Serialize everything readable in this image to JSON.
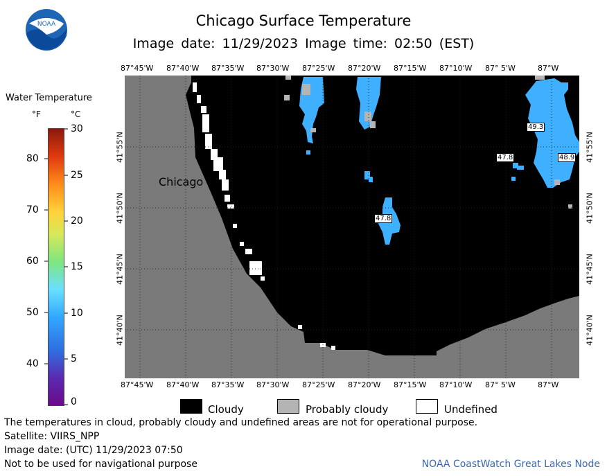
{
  "header": {
    "title": "Chicago Surface Temperature",
    "subtitle": "Image date: 11/29/2023    Image time: 02:50 (EST)"
  },
  "logo": {
    "text": "NOAA"
  },
  "map": {
    "lon_labels": [
      "87°45'W",
      "87°40'W",
      "87°35'W",
      "87°30'W",
      "87°25'W",
      "87°20'W",
      "87°15'W",
      "87°10'W",
      "87° 5'W",
      "87°W"
    ],
    "lat_labels": [
      "41°55'N",
      "41°50'N",
      "41°45'N",
      "41°40'N"
    ],
    "city_label": "Chicago",
    "temp_labels": [
      "49.3",
      "47.8",
      "48.9",
      "47.8"
    ]
  },
  "colorbar": {
    "title": "Water Temperature",
    "unit_f": "°F",
    "unit_c": "°C",
    "f_ticks": [
      "80",
      "70",
      "60",
      "50",
      "40"
    ],
    "c_ticks": [
      "30",
      "25",
      "20",
      "15",
      "10",
      "5",
      "0"
    ]
  },
  "legend": {
    "cloudy": "Cloudy",
    "probably_cloudy": "Probably cloudy",
    "undefined": "Undefined"
  },
  "notes": {
    "disclaimer": "The temperatures in cloud, probably cloudy and undefined areas are not for operational purpose.",
    "satellite": "Satellite: VIIRS_NPP",
    "utc_date": "Image date: (UTC) 11/29/2023  07:50",
    "navigation": "Not to be used for navigational purpose"
  },
  "credit": "NOAA CoastWatch Great Lakes Node",
  "colors": {
    "land": "#7a7a7a",
    "cloud": "#000000",
    "water_warm": "#3fb0ff",
    "probably_cloudy": "#b4b4b4"
  }
}
